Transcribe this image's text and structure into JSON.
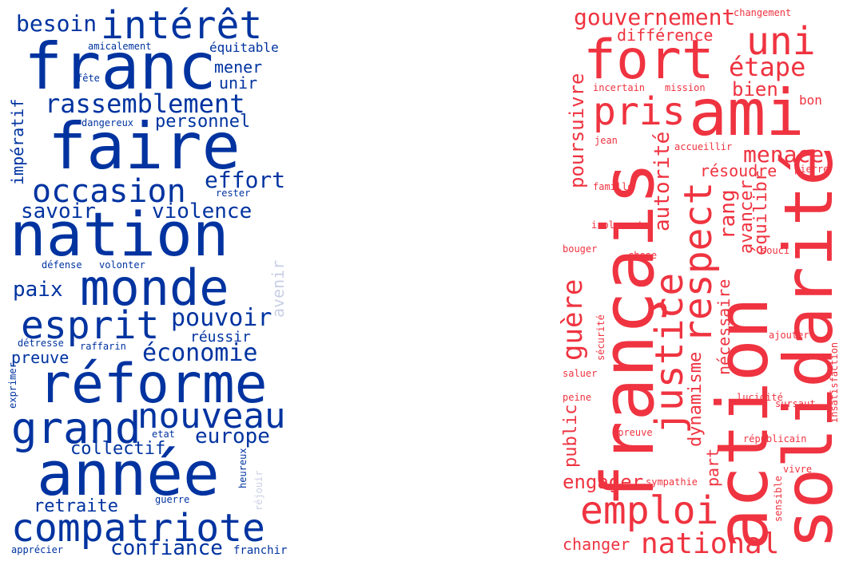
{
  "colors": {
    "left_primary": "#0033a0",
    "left_light": "#c9d0e6",
    "right_primary": "#ef3340",
    "right_light": "#f79aa0",
    "background": "#ffffff"
  },
  "left_cloud": [
    "besoin",
    "intérêt",
    "franc",
    "amicalement",
    "équitable",
    "mener",
    "unir",
    "fête",
    "rassemblement",
    "impératif",
    "dangereux",
    "personnel",
    "faire",
    "effort",
    "occasion",
    "rester",
    "savoir",
    "violence",
    "nation",
    "défense",
    "volonter",
    "avenir",
    "paix",
    "monde",
    "esprit",
    "pouvoir",
    "réussir",
    "détresse",
    "raffarin",
    "preuve",
    "économie",
    "exprimer",
    "réforme",
    "grand",
    "nouveau",
    "etat",
    "europe",
    "collectif",
    "année",
    "heureux",
    "réjouir",
    "retraite",
    "guerre",
    "compatriote",
    "confiance",
    "apprécier",
    "franchir"
  ],
  "right_cloud": [
    "gouvernement",
    "changement",
    "différence",
    "uni",
    "fort",
    "étape",
    "incertain",
    "mission",
    "bien",
    "bon",
    "pris",
    "ami",
    "poursuivre",
    "jean",
    "accueillir",
    "autorité",
    "menace",
    "résoudre",
    "pierre",
    "famille",
    "rang",
    "avancer",
    "équilibr",
    "isolement",
    "bouger",
    "chose",
    "souci",
    "respect",
    "solidarité",
    "action",
    "français",
    "nécessaire",
    "guère",
    "sécurité",
    "ajouter",
    "justice",
    "saluer",
    "dynamisme",
    "insatisfaction",
    "peine",
    "lucidité",
    "sursaut",
    "public",
    "épreuve",
    "républicain",
    "part",
    "engager",
    "sympathie",
    "vivre",
    "sensible",
    "emploi",
    "changer",
    "national"
  ]
}
